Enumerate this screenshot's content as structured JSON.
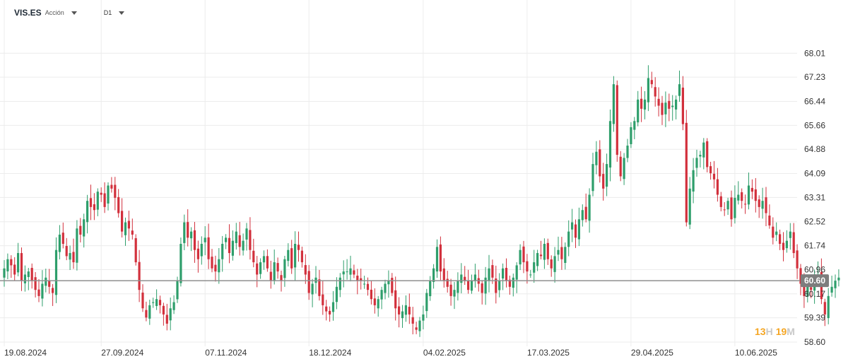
{
  "header": {
    "symbol": "VIS.ES",
    "asset_type": "Acción",
    "timeframe": "D1"
  },
  "countdown": {
    "hours": "13",
    "hours_unit": "H",
    "minutes": "19",
    "minutes_unit": "M"
  },
  "colors": {
    "up": "#2e9e6b",
    "down": "#d2303c",
    "grid": "#ececec",
    "price_line": "#8f8f8f",
    "price_label_bg": "#7d7d7d"
  },
  "chart_data": {
    "type": "candlestick",
    "title": "",
    "ylim": [
      58.6,
      68.5
    ],
    "y_ticks": [
      "68.01",
      "67.23",
      "66.44",
      "65.66",
      "64.88",
      "64.09",
      "63.31",
      "62.52",
      "61.74",
      "60.96",
      "60.17",
      "59.39",
      "58.60"
    ],
    "x_tick_labels": [
      "19.08.2024",
      "27.09.2024",
      "07.11.2024",
      "18.12.2024",
      "04.02.2025",
      "17.03.2025",
      "29.04.2025",
      "10.06.2025"
    ],
    "x_tick_indices": [
      0,
      28,
      58,
      88,
      121,
      151,
      181,
      211
    ],
    "current_price": 60.6,
    "current_price_label": "60.60",
    "closes": [
      61.0,
      61.3,
      61.1,
      60.8,
      61.5,
      60.6,
      60.8,
      60.9,
      60.6,
      60.3,
      60.1,
      60.5,
      60.7,
      60.4,
      60.2,
      61.6,
      62.1,
      61.8,
      61.4,
      61.5,
      61.2,
      62.3,
      62.1,
      62.6,
      63.2,
      63.0,
      62.9,
      63.5,
      63.4,
      63.0,
      63.7,
      63.6,
      63.3,
      62.8,
      62.2,
      62.5,
      62.3,
      62.1,
      61.2,
      60.3,
      59.7,
      59.4,
      59.8,
      59.9,
      60.0,
      59.8,
      59.5,
      59.2,
      59.7,
      59.9,
      60.6,
      61.8,
      62.5,
      62.0,
      62.2,
      61.6,
      61.3,
      61.8,
      62.0,
      61.3,
      61.0,
      60.9,
      61.3,
      61.8,
      62.0,
      61.5,
      61.9,
      62.2,
      61.7,
      61.9,
      62.3,
      61.6,
      61.2,
      60.8,
      61.2,
      61.4,
      61.0,
      60.6,
      61.2,
      60.9,
      60.6,
      61.3,
      61.6,
      61.0,
      61.8,
      61.6,
      61.2,
      60.8,
      60.2,
      60.5,
      60.7,
      60.1,
      59.8,
      59.6,
      59.5,
      59.9,
      60.4,
      60.7,
      60.9,
      60.9,
      61.0,
      60.8,
      60.6,
      60.6,
      60.5,
      60.3,
      60.0,
      59.8,
      60.0,
      60.3,
      60.5,
      60.6,
      60.2,
      59.7,
      59.5,
      59.6,
      59.8,
      59.5,
      59.2,
      59.0,
      59.3,
      59.5,
      60.2,
      60.6,
      61.0,
      61.7,
      60.9,
      60.6,
      60.4,
      60.1,
      60.3,
      60.6,
      60.8,
      60.6,
      60.3,
      60.6,
      60.8,
      60.5,
      60.2,
      60.7,
      61.0,
      60.7,
      60.2,
      60.6,
      61.0,
      60.6,
      60.4,
      60.7,
      61.1,
      61.6,
      61.2,
      60.9,
      60.8,
      61.2,
      61.5,
      61.4,
      61.8,
      61.3,
      61.0,
      61.4,
      61.6,
      61.3,
      61.7,
      62.2,
      62.5,
      62.0,
      62.6,
      62.9,
      62.6,
      63.4,
      64.4,
      64.8,
      64.0,
      63.6,
      64.4,
      65.8,
      67.0,
      64.7,
      64.0,
      64.6,
      65.0,
      65.6,
      65.8,
      66.5,
      66.2,
      66.5,
      67.2,
      67.0,
      66.6,
      66.3,
      66.0,
      66.4,
      66.2,
      66.3,
      66.5,
      67.0,
      65.7,
      62.5,
      63.6,
      64.2,
      64.6,
      64.7,
      65.1,
      64.3,
      64.1,
      63.9,
      63.4,
      63.0,
      62.9,
      63.2,
      62.6,
      63.3,
      63.4,
      63.2,
      63.1,
      63.7,
      63.5,
      63.2,
      63.0,
      63.2,
      62.8,
      62.4,
      62.0,
      62.2,
      61.8,
      61.6,
      61.9,
      62.2,
      61.5,
      61.0,
      60.5,
      60.1,
      60.4,
      60.3,
      60.7,
      60.8,
      60.0,
      59.5,
      60.1,
      60.4,
      60.6,
      60.7
    ]
  }
}
